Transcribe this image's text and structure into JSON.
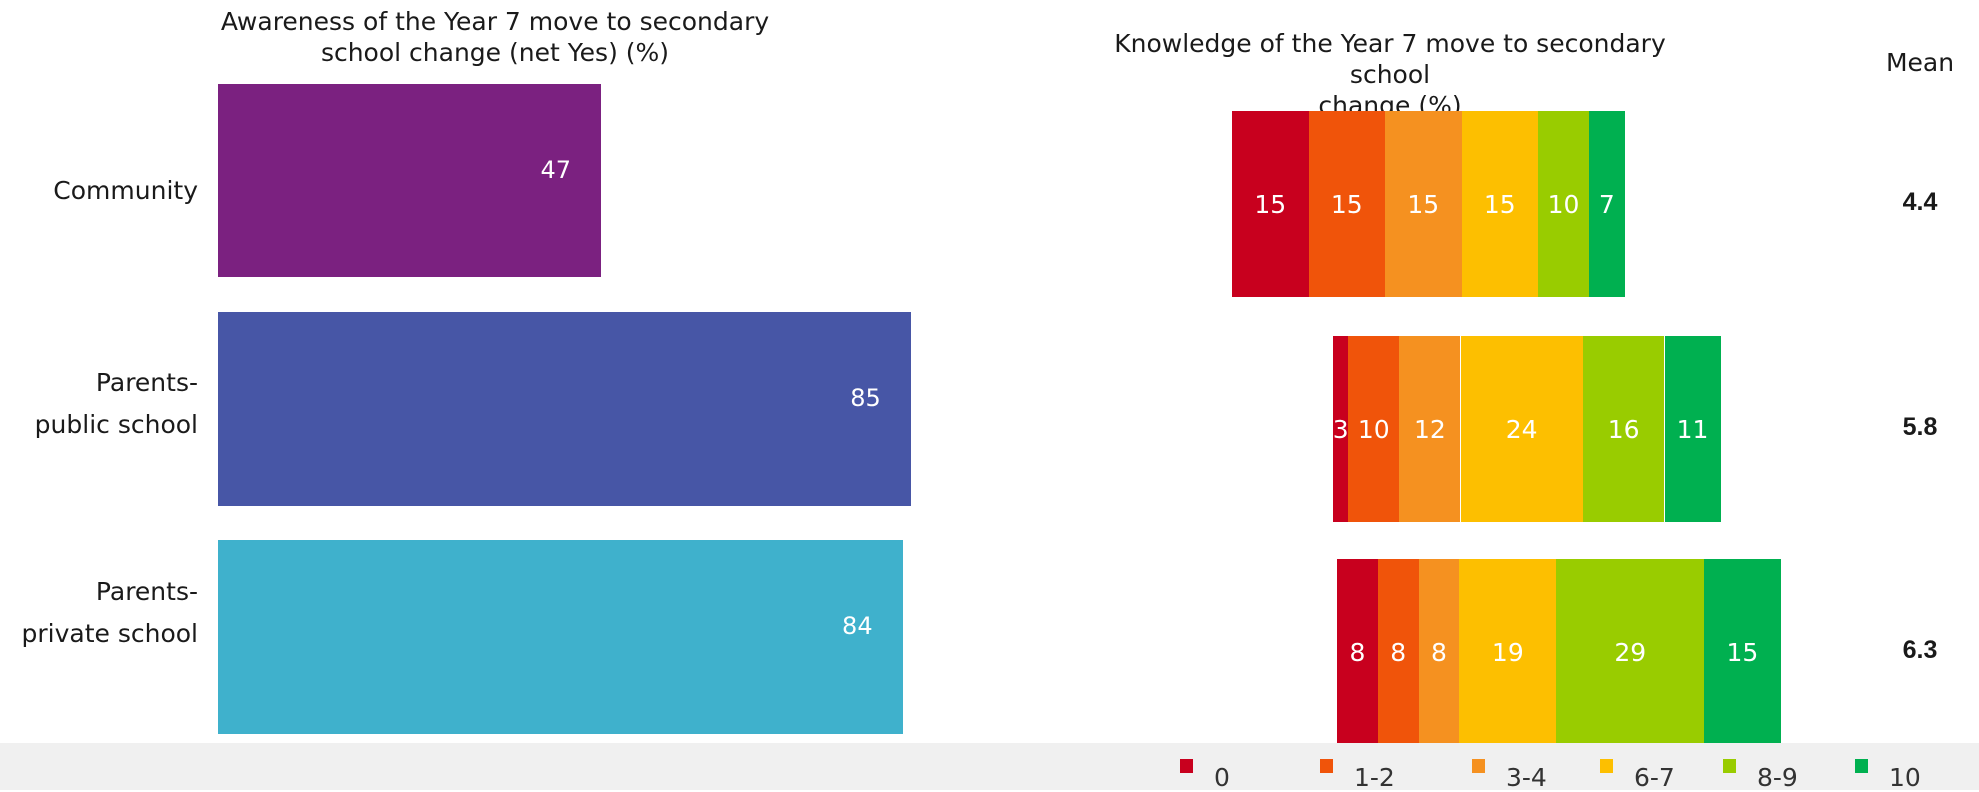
{
  "left_chart_title": "Awareness of the Year 7 move to secondary\nschool change (net Yes) (%)",
  "right_chart_title": "Knowledge of the Year 7 move to secondary school\nchange (%)",
  "mean_header": "Mean",
  "chart_data": [
    {
      "type": "bar",
      "orientation": "horizontal",
      "title": "Awareness of the Year 7 move to secondary school change (net Yes) (%)",
      "categories": [
        "Community",
        "Parents-\npublic school",
        "Parents-\nprivate school"
      ],
      "values": [
        47,
        85,
        84
      ],
      "colors": [
        "#7b2180",
        "#4756a6",
        "#3fb1cc"
      ],
      "xlim": [
        0,
        100
      ]
    },
    {
      "type": "bar",
      "orientation": "horizontal",
      "stacked": true,
      "title": "Knowledge of the Year 7 move to secondary school change (%)",
      "categories": [
        "Community",
        "Parents-\npublic school",
        "Parents-\nprivate school"
      ],
      "series": [
        {
          "name": "0",
          "color": "#c8001e",
          "values": [
            15,
            3,
            8
          ]
        },
        {
          "name": "1-2",
          "color": "#f0540a",
          "values": [
            15,
            10,
            8
          ]
        },
        {
          "name": "3-4",
          "color": "#f59120",
          "values": [
            15,
            12,
            8
          ]
        },
        {
          "name": "6-7",
          "color": "#fdbf00",
          "values": [
            15,
            24,
            19
          ]
        },
        {
          "name": "8-9",
          "color": "#99cc00",
          "values": [
            10,
            16,
            29
          ]
        },
        {
          "name": "10",
          "color": "#00b050",
          "values": [
            7,
            11,
            15
          ]
        }
      ],
      "means": [
        "4.4",
        "5.8",
        "6.3"
      ],
      "legend_position": "bottom"
    }
  ]
}
